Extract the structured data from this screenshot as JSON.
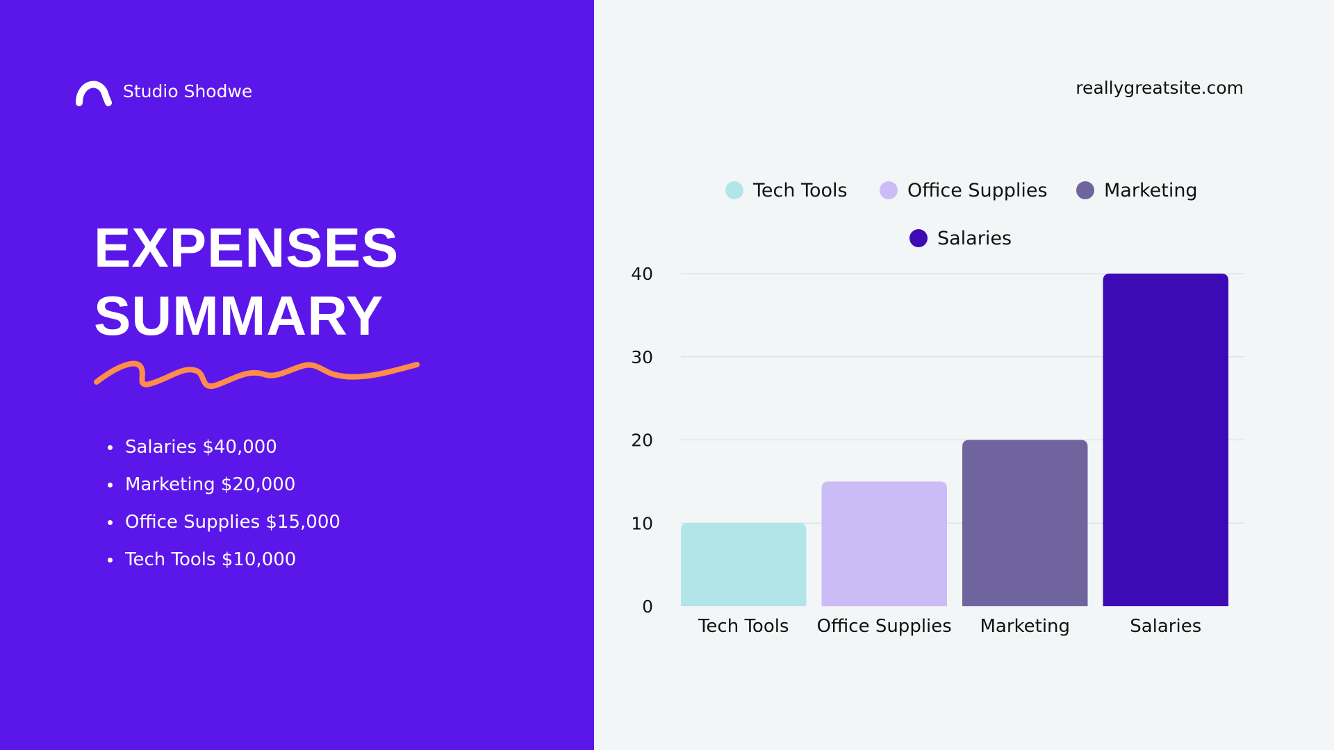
{
  "colors": {
    "left_bg": "#5b17ea",
    "right_bg": "#f3f6f7",
    "accent_orange": "#ff8c4a",
    "tech_tools": "#b2e5e8",
    "office_supplies": "#cbbcf6",
    "marketing": "#70649e",
    "salaries": "#3e0ab5"
  },
  "brand": {
    "name": "Studio Shodwe",
    "logo_icon": "arc-logo-icon"
  },
  "site": "reallygreatsite.com",
  "title_lines": [
    "EXPENSES",
    "SUMMARY"
  ],
  "bullets": [
    "Salaries $40,000",
    "Marketing $20,000",
    "Office Supplies $15,000",
    "Tech Tools $10,000"
  ],
  "chart_data": {
    "type": "bar",
    "categories": [
      "Tech Tools",
      "Office Supplies",
      "Marketing",
      "Salaries"
    ],
    "values": [
      10,
      15,
      20,
      40
    ],
    "colors": [
      "#b2e5e8",
      "#cbbcf6",
      "#70649e",
      "#3e0ab5"
    ],
    "legend": [
      "Tech Tools",
      "Office Supplies",
      "Marketing",
      "Salaries"
    ],
    "legend_position": "top",
    "title": "",
    "xlabel": "",
    "ylabel": "",
    "ylim": [
      0,
      40
    ],
    "yticks": [
      0,
      10,
      20,
      30,
      40
    ],
    "grid": true
  }
}
